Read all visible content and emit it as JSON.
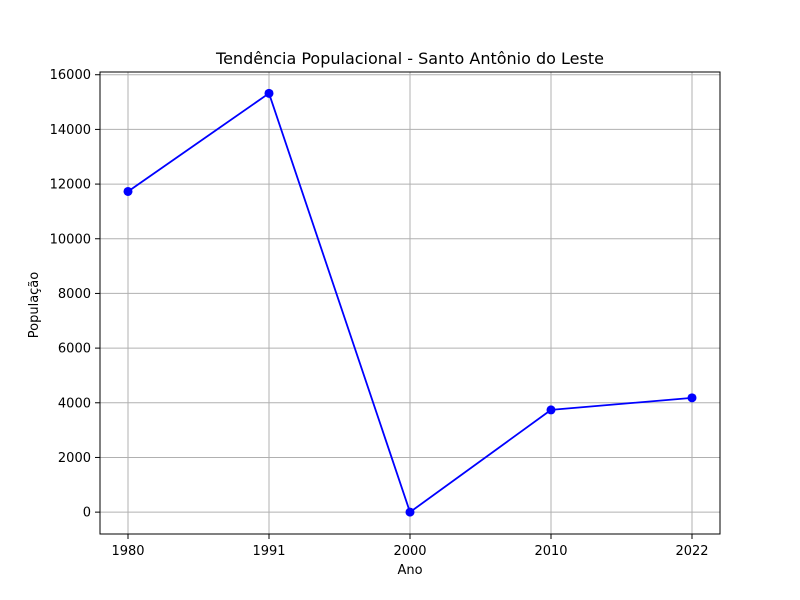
{
  "chart_data": {
    "type": "line",
    "title": "Tendência Populacional - Santo Antônio do Leste",
    "xlabel": "Ano",
    "ylabel": "População",
    "categories": [
      "1980",
      "1991",
      "2000",
      "2010",
      "2022"
    ],
    "series": [
      {
        "values": [
          11730,
          15320,
          0,
          3740,
          4180
        ],
        "color": "#0000ff",
        "marker": "circle"
      }
    ],
    "ylim": [
      -800,
      16100
    ],
    "yticks": [
      0,
      2000,
      4000,
      6000,
      8000,
      10000,
      12000,
      14000,
      16000
    ],
    "grid": true,
    "legend": "none"
  }
}
